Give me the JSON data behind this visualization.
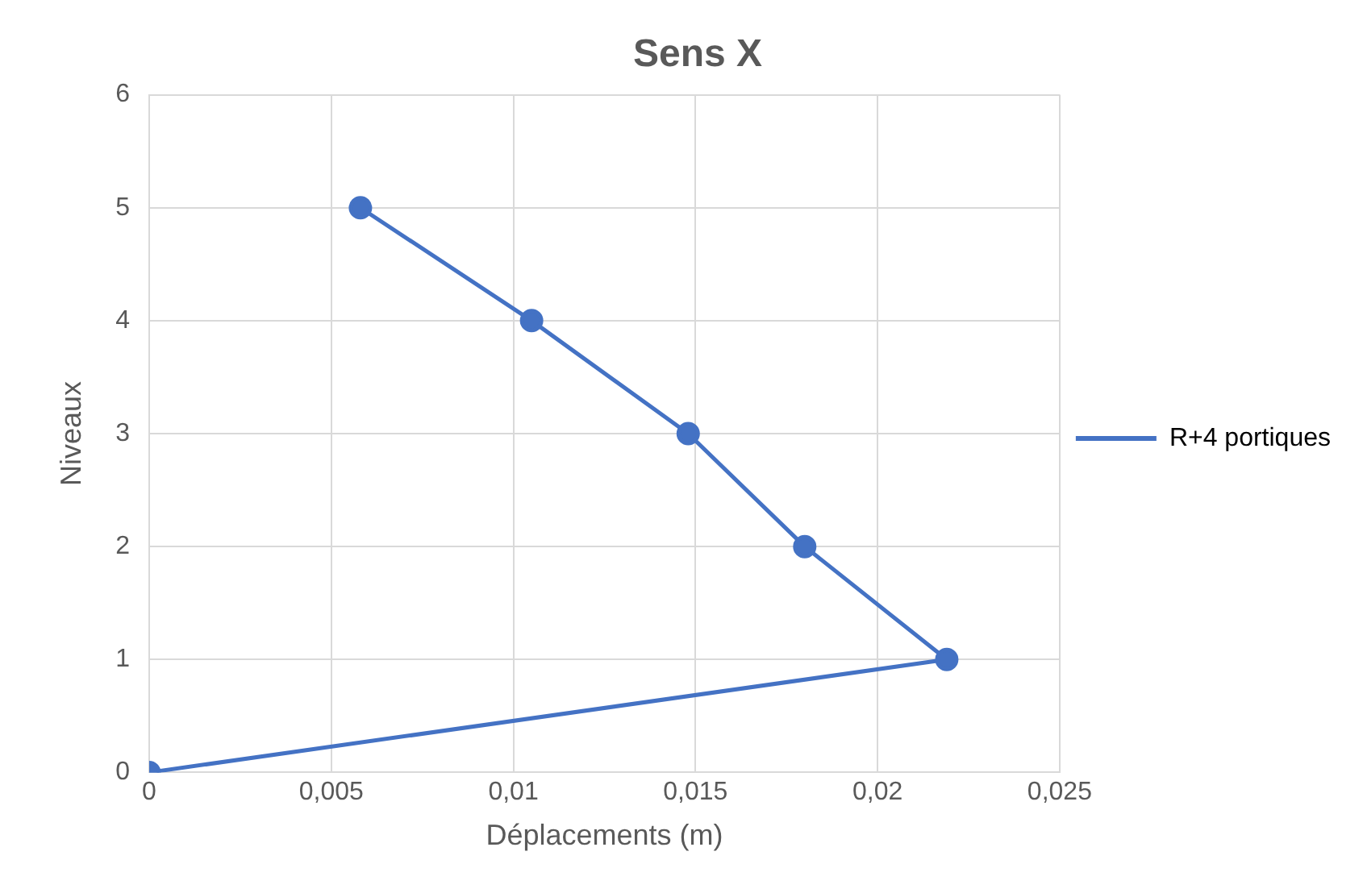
{
  "chart_data": {
    "type": "line",
    "title": "Sens X",
    "xlabel": "Déplacements (m)",
    "ylabel": "Niveaux",
    "x": [
      0,
      0.0219,
      0.018,
      0.0148,
      0.0105,
      0.0058
    ],
    "series": [
      {
        "name": "R+4 portiques",
        "color": "#4472c4",
        "values": [
          0,
          1,
          2,
          3,
          4,
          5
        ]
      }
    ],
    "xlim": [
      0,
      0.025
    ],
    "xticks": [
      0,
      {
        "value": 0.005,
        "label": "0,005"
      },
      {
        "value": 0.01,
        "label": "0,01"
      },
      {
        "value": 0.015,
        "label": "0,015"
      },
      {
        "value": 0.02,
        "label": "0,02"
      },
      {
        "value": 0.025,
        "label": "0,025"
      }
    ],
    "ylim": [
      0,
      6
    ],
    "yticks": [
      0,
      1,
      2,
      3,
      4,
      5,
      6
    ],
    "grid": true,
    "legend": "right",
    "marker": "circle",
    "line_style": "solid"
  }
}
